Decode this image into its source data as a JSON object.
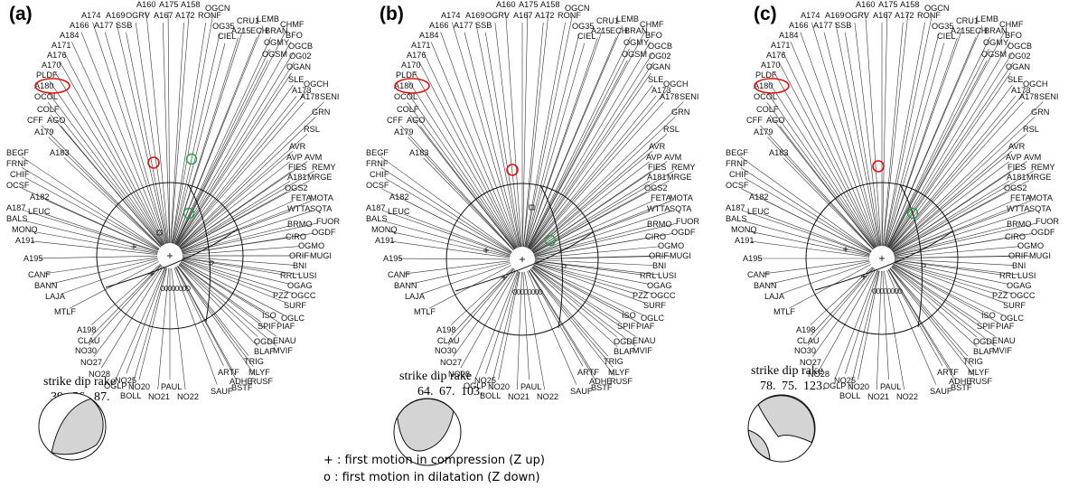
{
  "panels": [
    {
      "label": "(a)",
      "strike": 39,
      "dip": 56,
      "rake": 87,
      "values_text": "39. 56. 87."
    },
    {
      "label": "(b)",
      "strike": 64,
      "dip": 67,
      "rake": 103,
      "values_text": "64. 67. 103."
    },
    {
      "label": "(c)",
      "strike": 78,
      "dip": 75,
      "rake": 123,
      "values_text": "78. 75. 123."
    }
  ],
  "sdr_header": "strike dip rake",
  "highlight_station": "A180",
  "legend": {
    "compression": "+ : first motion in compression (Z up)",
    "dilatation": "o : first motion in dilatation (Z down)"
  },
  "stations": [
    "A160",
    "A175",
    "A158",
    "OGCN",
    "A174",
    "A169",
    "OGRV",
    "A167",
    "A172",
    "RONF",
    "CRU1",
    "LEMB",
    "CHMF",
    "A166",
    "A177",
    "SSB",
    "OG35",
    "A215",
    "ECH",
    "BRAN",
    "BFO",
    "A184",
    "CIEL",
    "OGMY",
    "OGCB",
    "A171",
    "OGSM",
    "OG02",
    "A176",
    "OGAN",
    "A170",
    "SLE",
    "OGCH",
    "PLDF",
    "A173",
    "A180",
    "A178",
    "SENI",
    "OCOL",
    "COLF",
    "GRN",
    "CFF",
    "AGO",
    "RSL",
    "A179",
    "AVR",
    "AVP",
    "AVM",
    "BEGF",
    "A183",
    "FIES",
    "REMY",
    "FRNF",
    "A181",
    "MRGE",
    "CHIF",
    "OGS2",
    "OCSF",
    "FETA",
    "MOTA",
    "A182",
    "WTTA",
    "SQTA",
    "A187",
    "LEUC",
    "BRMO",
    "FUOR",
    "BALS",
    "OGDF",
    "MONQ",
    "CIRO",
    "A191",
    "OGMO",
    "ORIF",
    "MUGI",
    "A195",
    "BNI",
    "RRL",
    "LUSI",
    "CANF",
    "OGAG",
    "BANN",
    "PZZ",
    "OGCC",
    "LAJA",
    "SURF",
    "MTLF",
    "ISO",
    "OGLC",
    "A198",
    "SPIF",
    "PIAF",
    "CLAU",
    "OGDI",
    "ENAU",
    "NO30",
    "BLAF",
    "MVIF",
    "NO27",
    "TRIG",
    "NO28",
    "ARTF",
    "MLYF",
    "NO25",
    "ADHE",
    "RUSF",
    "OGLP",
    "NO20",
    "PAUL",
    "BOLL",
    "NO21",
    "NO22",
    "SAUF",
    "BSTF"
  ]
}
